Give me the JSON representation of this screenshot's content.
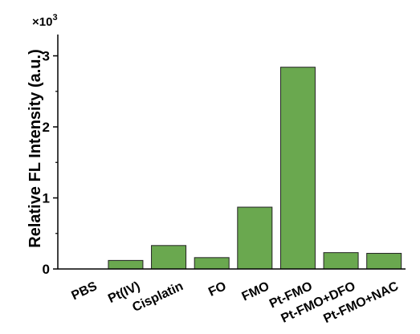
{
  "chart_data": {
    "type": "bar",
    "categories": [
      "PBS",
      "Pt(IV)",
      "Cisplatin",
      "FO",
      "FMO",
      "Pt-FMO",
      "Pt-FMO+DFO",
      "Pt-FMO+NAC"
    ],
    "values": [
      0.0,
      0.12,
      0.33,
      0.16,
      0.87,
      2.84,
      0.23,
      0.22
    ],
    "ylabel": "Relative FL Intensity (a.u.)",
    "y_multiplier_base": "×10",
    "y_multiplier_exp": "3",
    "ylim": [
      0,
      3.3
    ],
    "yticks": [
      0,
      1,
      2,
      3
    ],
    "grid": false,
    "bar_color": "#6aa84f",
    "bar_edge_color": "#222222"
  }
}
